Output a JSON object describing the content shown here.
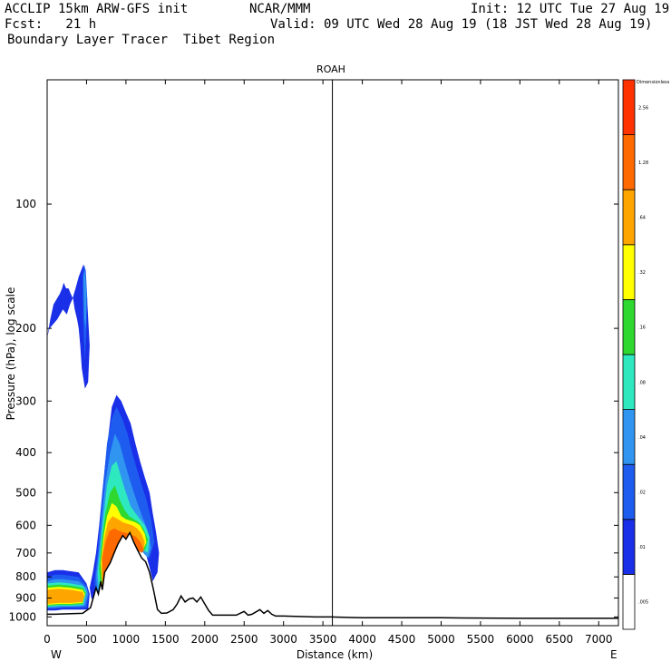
{
  "header": {
    "model": "ACCLIP 15km ARW-GFS init",
    "org": "NCAR/MMM",
    "init": "Init: 12 UTC Tue 27 Aug 19",
    "fcst": "Fcst:   21 h",
    "valid": "Valid: 09 UTC Wed 28 Aug 19 (18 JST Wed 28 Aug 19)",
    "product": "Boundary Layer Tracer  Tibet Region"
  },
  "chart_data": {
    "type": "area",
    "title": "ROAH",
    "xlabel": "Distance (km)",
    "ylabel": "Pressure (hPa), log scale",
    "xlim": [
      0,
      7250
    ],
    "ylim": [
      1050,
      50
    ],
    "y_scale": "log",
    "x_ticks": [
      0,
      500,
      1000,
      1500,
      2000,
      2500,
      3000,
      3500,
      4000,
      4500,
      5000,
      5500,
      6000,
      6500,
      7000
    ],
    "x_tick_labels": [
      "0",
      "500",
      "1000",
      "1500",
      "2000",
      "2500",
      "3000",
      "3500",
      "4000",
      "4500",
      "5000",
      "5500",
      "6000",
      "6500",
      "7000"
    ],
    "y_ticks": [
      100,
      200,
      300,
      400,
      500,
      600,
      700,
      800,
      900,
      1000
    ],
    "y_tick_labels": [
      "100",
      "200",
      "300",
      "400",
      "500",
      "600",
      "700",
      "800",
      "900",
      "1000"
    ],
    "endpoint_labels": {
      "left": "W",
      "right": "E"
    },
    "vertical_marker_km": 3620,
    "colorbar": {
      "title": "Dimensionless",
      "levels": [
        ".005",
        ".01",
        ".02",
        ".04",
        ".08",
        ".16",
        ".32",
        ".64",
        "1.28",
        "2.56"
      ],
      "colors": [
        "#ffffff",
        "#1a2fe8",
        "#1e5cf0",
        "#2f95f0",
        "#2ee8c0",
        "#2ed82e",
        "#ffff00",
        "#ffa500",
        "#ff6a00",
        "#ff3300"
      ]
    },
    "terrain": {
      "x": [
        0,
        100,
        300,
        450,
        550,
        620,
        650,
        680,
        700,
        730,
        800,
        850,
        900,
        960,
        1000,
        1050,
        1100,
        1150,
        1200,
        1250,
        1300,
        1350,
        1400,
        1450,
        1520,
        1600,
        1650,
        1700,
        1750,
        1800,
        1850,
        1900,
        1950,
        2000,
        2050,
        2100,
        2200,
        2400,
        2500,
        2550,
        2600,
        2700,
        2750,
        2800,
        2850,
        2900,
        3000,
        3400,
        3600,
        4000,
        5000,
        6000,
        7250
      ],
      "p": [
        985,
        985,
        982,
        980,
        950,
        850,
        880,
        820,
        860,
        780,
        740,
        700,
        665,
        635,
        648,
        625,
        660,
        690,
        720,
        735,
        780,
        860,
        960,
        980,
        978,
        960,
        930,
        890,
        920,
        905,
        900,
        920,
        895,
        930,
        965,
        990,
        990,
        990,
        970,
        990,
        985,
        960,
        980,
        965,
        985,
        995,
        995,
        1000,
        1000,
        1005,
        1005,
        1008,
        1008
      ]
    },
    "tracer_bands": [
      {
        "level": ".01",
        "color": "#1a2fe8",
        "regions": [
          {
            "x": [
              0,
              30,
              80,
              130,
              200,
              250,
              290,
              320,
              360,
              400,
              460,
              500,
              540,
              520,
              480,
              440,
              420,
              400,
              380,
              350,
              330,
              300,
              270,
              240,
              210,
              190,
              160,
              120,
              80,
              40,
              10,
              0
            ],
            "p": [
              210,
              200,
              195,
              190,
              180,
              185,
              175,
              170,
              160,
              150,
              140,
              160,
              220,
              270,
              280,
              250,
              220,
              200,
              190,
              180,
              170,
              165,
              160,
              160,
              155,
              160,
              165,
              170,
              175,
              190,
              205,
              210
            ]
          },
          {
            "x": [
              540,
              580,
              620,
              660,
              700,
              740,
              780,
              820,
              880,
              940,
              1000,
              1060,
              1120,
              1180,
              1240,
              1300,
              1340,
              1380,
              1420,
              1400,
              1340,
              1300,
              1250,
              1200,
              1150,
              1100,
              1040,
              980,
              920,
              860,
              800,
              740,
              690,
              650,
              600,
              560,
              540
            ],
            "p": [
              850,
              780,
              700,
              600,
              500,
              420,
              360,
              310,
              290,
              300,
              320,
              340,
              380,
              420,
              460,
              500,
              560,
              620,
              700,
              780,
              820,
              760,
              700,
              660,
              630,
              620,
              630,
              640,
              660,
              680,
              700,
              740,
              800,
              860,
              920,
              900,
              850
            ]
          },
          {
            "x": [
              0,
              100,
              200,
              300,
              400,
              500,
              540,
              520,
              420,
              300,
              200,
              100,
              0
            ],
            "p": [
              780,
              770,
              770,
              775,
              780,
              830,
              880,
              960,
              960,
              960,
              960,
              965,
              965
            ]
          }
        ]
      },
      {
        "level": ".02",
        "color": "#1e5cf0",
        "regions": [
          {
            "x": [
              450,
              470,
              490,
              510,
              500,
              480,
              460,
              450
            ],
            "p": [
              150,
              140,
              145,
              170,
              200,
              240,
              200,
              150
            ]
          },
          {
            "x": [
              600,
              640,
              680,
              720,
              760,
              820,
              880,
              950,
              1020,
              1080,
              1140,
              1200,
              1260,
              1320,
              1360,
              1300,
              1240,
              1180,
              1120,
              1060,
              1000,
              940,
              880,
              820,
              760,
              700,
              650,
              610,
              600
            ],
            "p": [
              820,
              700,
              560,
              460,
              380,
              330,
              310,
              330,
              360,
              400,
              440,
              480,
              520,
              580,
              660,
              720,
              700,
              680,
              660,
              650,
              650,
              660,
              680,
              700,
              740,
              800,
              880,
              900,
              820
            ]
          },
          {
            "x": [
              0,
              100,
              200,
              300,
              400,
              500,
              530,
              500,
              400,
              300,
              200,
              100,
              0
            ],
            "p": [
              800,
              790,
              790,
              795,
              800,
              840,
              880,
              950,
              950,
              950,
              950,
              955,
              955
            ]
          }
        ]
      },
      {
        "level": ".04",
        "color": "#2f95f0",
        "regions": [
          {
            "x": [
              460,
              480,
              500,
              490,
              470,
              460
            ],
            "p": [
              150,
              145,
              165,
              200,
              190,
              150
            ]
          },
          {
            "x": [
              620,
              660,
              700,
              740,
              800,
              860,
              920,
              980,
              1040,
              1100,
              1160,
              1220,
              1280,
              1320,
              1280,
              1220,
              1160,
              1100,
              1040,
              980,
              920,
              860,
              800,
              740,
              690,
              640,
              620
            ],
            "p": [
              800,
              680,
              560,
              470,
              400,
              360,
              380,
              420,
              460,
              500,
              540,
              580,
              620,
              680,
              720,
              700,
              680,
              670,
              665,
              665,
              680,
              700,
              720,
              760,
              820,
              880,
              800
            ]
          },
          {
            "x": [
              0,
              100,
              200,
              300,
              400,
              500,
              520,
              480,
              400,
              300,
              200,
              100,
              0
            ],
            "p": [
              820,
              810,
              810,
              815,
              820,
              850,
              880,
              940,
              945,
              945,
              945,
              950,
              950
            ]
          }
        ]
      },
      {
        "level": ".08",
        "color": "#2ee8c0",
        "regions": [
          {
            "x": [
              640,
              680,
              720,
              760,
              820,
              880,
              940,
              1000,
              1060,
              1120,
              1180,
              1240,
              1300,
              1280,
              1220,
              1160,
              1100,
              1040,
              980,
              920,
              860,
              800,
              740,
              690,
              660,
              640
            ],
            "p": [
              780,
              660,
              560,
              480,
              430,
              420,
              460,
              500,
              540,
              560,
              580,
              600,
              640,
              700,
              690,
              680,
              670,
              668,
              668,
              680,
              700,
              730,
              780,
              840,
              880,
              780
            ]
          },
          {
            "x": [
              0,
              150,
              300,
              450,
              500,
              460,
              300,
              150,
              0
            ],
            "p": [
              830,
              825,
              830,
              840,
              870,
              935,
              940,
              940,
              945
            ]
          }
        ]
      },
      {
        "level": ".16",
        "color": "#2ed82e",
        "regions": [
          {
            "x": [
              660,
              700,
              740,
              800,
              860,
              920,
              980,
              1040,
              1100,
              1160,
              1220,
              1280,
              1240,
              1180,
              1120,
              1060,
              1000,
              940,
              880,
              820,
              760,
              710,
              680,
              660
            ],
            "p": [
              760,
              640,
              560,
              500,
              480,
              520,
              550,
              570,
              580,
              590,
              610,
              650,
              690,
              680,
              672,
              668,
              668,
              680,
              700,
              730,
              780,
              840,
              870,
              760
            ]
          },
          {
            "x": [
              0,
              150,
              300,
              450,
              490,
              450,
              300,
              150,
              0
            ],
            "p": [
              840,
              835,
              840,
              850,
              875,
              930,
              935,
              935,
              940
            ]
          }
        ]
      },
      {
        "level": ".32",
        "color": "#ffff00",
        "regions": [
          {
            "x": [
              680,
              720,
              760,
              820,
              880,
              940,
              1000,
              1060,
              1120,
              1180,
              1240,
              1260,
              1220,
              1160,
              1100,
              1040,
              980,
              920,
              860,
              800,
              740,
              700,
              680
            ],
            "p": [
              740,
              630,
              570,
              530,
              540,
              570,
              580,
              585,
              590,
              600,
              630,
              660,
              685,
              675,
              670,
              668,
              668,
              680,
              700,
              735,
              790,
              850,
              740
            ]
          },
          {
            "x": [
              0,
              150,
              300,
              450,
              480,
              450,
              300,
              150,
              0
            ],
            "p": [
              850,
              845,
              850,
              860,
              880,
              925,
              930,
              930,
              935
            ]
          }
        ]
      },
      {
        "level": ".64",
        "color": "#ffa500",
        "regions": [
          {
            "x": [
              690,
              730,
              770,
              830,
              900,
              960,
              1020,
              1080,
              1140,
              1200,
              1240,
              1220,
              1160,
              1100,
              1040,
              980,
              920,
              860,
              800,
              740,
              700,
              690
            ],
            "p": [
              720,
              640,
              590,
              570,
              580,
              590,
              595,
              600,
              610,
              630,
              660,
              690,
              680,
              672,
              668,
              668,
              680,
              700,
              740,
              800,
              860,
              720
            ]
          },
          {
            "x": [
              0,
              150,
              300,
              450,
              470,
              450,
              300,
              150,
              0
            ],
            "p": [
              860,
              855,
              860,
              870,
              890,
              920,
              925,
              925,
              930
            ]
          }
        ]
      },
      {
        "level": "1.28",
        "color": "#ff6a00",
        "regions": [
          {
            "x": [
              700,
              740,
              790,
              850,
              920,
              990,
              1060,
              1130,
              1190,
              1230,
              1200,
              1150,
              1100,
              1040,
              980,
              920,
              860,
              800,
              740,
              705,
              700
            ],
            "p": [
              720,
              660,
              620,
              610,
              620,
              625,
              630,
              640,
              660,
              690,
              700,
              690,
              675,
              668,
              668,
              680,
              705,
              745,
              810,
              870,
              720
            ]
          }
        ]
      }
    ]
  }
}
